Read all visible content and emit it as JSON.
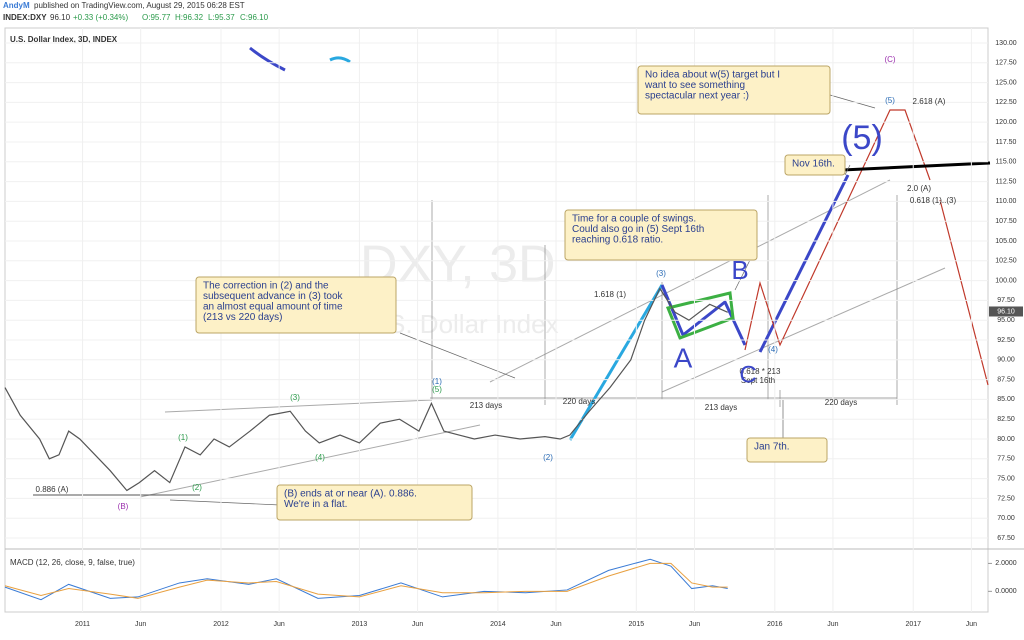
{
  "header": {
    "author": "AndyM",
    "published": "published on TradingView.com, August 29, 2015 06:28 EST",
    "symbol": "INDEX:DXY",
    "price": "96.10",
    "change": "+0.33 (+0.34%)",
    "open": "O:95.77",
    "high": "H:96.32",
    "low": "L:95.37",
    "close": "C:96.10",
    "chart_name": "U.S. Dollar Index, 3D, INDEX",
    "watermark": "DXY, 3D",
    "watermark_sub": "U.S. Dollar Index"
  },
  "chart_data": [
    {
      "type": "line",
      "color": "#555555",
      "grid": true,
      "x": [
        2010.44,
        2010.55,
        2010.69,
        2010.76,
        2010.83,
        2010.9,
        2010.98,
        2011.09,
        2011.2,
        2011.32,
        2011.41,
        2011.52,
        2011.63,
        2011.74,
        2011.85,
        2011.95,
        2012.06,
        2012.21,
        2012.35,
        2012.5,
        2012.61,
        2012.71,
        2012.86,
        2013.0,
        2013.15,
        2013.29,
        2013.43,
        2013.52,
        2013.61,
        2013.72,
        2013.83,
        2013.98,
        2014.16,
        2014.34,
        2014.45,
        2014.52,
        2014.66,
        2014.81,
        2014.96,
        2015.06,
        2015.17,
        2015.28,
        2015.38,
        2015.53,
        2015.66
      ],
      "values": [
        86.5,
        83,
        80,
        77.5,
        78,
        81,
        80,
        78,
        76,
        73.5,
        74.5,
        76,
        74.5,
        79,
        78,
        80,
        79,
        81,
        83,
        83.5,
        81,
        79.5,
        80.5,
        79.5,
        82,
        82.5,
        81,
        84.5,
        81,
        80.5,
        80,
        80.5,
        80,
        80.3,
        80,
        80.5,
        83.5,
        86.5,
        90,
        95,
        99,
        96,
        95,
        97,
        96
      ],
      "last_price": {
        "value": 96.1,
        "label": "96.10"
      },
      "xlim": [
        2010.44,
        2017.54
      ],
      "xticks": [
        {
          "value": 2011,
          "label": "2011"
        },
        {
          "value": 2011.42,
          "label": "Jun"
        },
        {
          "value": 2012,
          "label": "2012"
        },
        {
          "value": 2012.42,
          "label": "Jun"
        },
        {
          "value": 2013,
          "label": "2013"
        },
        {
          "value": 2013.42,
          "label": "Jun"
        },
        {
          "value": 2014,
          "label": "2014"
        },
        {
          "value": 2014.42,
          "label": "Jun"
        },
        {
          "value": 2015,
          "label": "2015"
        },
        {
          "value": 2015.42,
          "label": "Jun"
        },
        {
          "value": 2016,
          "label": "2016"
        },
        {
          "value": 2016.42,
          "label": "Jun"
        },
        {
          "value": 2017,
          "label": "2017"
        },
        {
          "value": 2017.42,
          "label": "Jun"
        }
      ],
      "ylim": [
        66.24,
        131.89
      ],
      "yticks": [
        {
          "value": 67.5,
          "label": "67.50"
        },
        {
          "value": 70,
          "label": "70.00"
        },
        {
          "value": 72.5,
          "label": "72.50"
        },
        {
          "value": 75,
          "label": "75.00"
        },
        {
          "value": 77.5,
          "label": "77.50"
        },
        {
          "value": 80,
          "label": "80.00"
        },
        {
          "value": 82.5,
          "label": "82.50"
        },
        {
          "value": 85,
          "label": "85.00"
        },
        {
          "value": 87.5,
          "label": "87.50"
        },
        {
          "value": 90,
          "label": "90.00"
        },
        {
          "value": 92.5,
          "label": "92.50"
        },
        {
          "value": 95,
          "label": "95.00"
        },
        {
          "value": 97.5,
          "label": "97.50"
        },
        {
          "value": 100,
          "label": "100.00"
        },
        {
          "value": 102.5,
          "label": "102.50"
        },
        {
          "value": 105,
          "label": "105.00"
        },
        {
          "value": 107.5,
          "label": "107.50"
        },
        {
          "value": 110,
          "label": "110.00"
        },
        {
          "value": 112.5,
          "label": "112.50"
        },
        {
          "value": 115,
          "label": "115.00"
        },
        {
          "value": 117.5,
          "label": "117.50"
        },
        {
          "value": 120,
          "label": "120.00"
        },
        {
          "value": 122.5,
          "label": "122.50"
        },
        {
          "value": 125,
          "label": "125.00"
        },
        {
          "value": 127.5,
          "label": "127.50"
        },
        {
          "value": 130,
          "label": "130.00"
        }
      ],
      "annotations": [
        "(1)",
        "(5)",
        "(3)",
        "(1)",
        "(4)",
        "(2)",
        "(B)",
        "(2)",
        "(3)",
        "(4)",
        "(C)",
        "(5)",
        "0.886 (A)",
        "1.618 (1)",
        "2.0 (A)",
        "0.618 (1)..(3)",
        "2.618 (A)",
        "213 days",
        "220 days",
        "213 days",
        "220 days",
        "0.618 * 213",
        "Sept 16th",
        "A",
        "B",
        "C",
        "(5)"
      ],
      "callouts": [
        {
          "lines": [
            "The correction in (2) and the",
            "subsequent advance in (3) took",
            "an almost equal amount of time",
            "(213 vs 220 days)"
          ]
        },
        {
          "lines": [
            "(B) ends at or near (A). 0.886.",
            "We're in a flat."
          ]
        },
        {
          "lines": [
            "Time for a couple of swings.",
            "Could also go in (5) Sept 16th",
            "reaching 0.618 ratio."
          ]
        },
        {
          "lines": [
            "No idea about w(5) target but I",
            "want to see something",
            "spectacular next year :)"
          ]
        },
        {
          "lines": [
            "Nov 16th."
          ]
        },
        {
          "lines": [
            "Jan 7th."
          ]
        }
      ]
    },
    {
      "type": "line",
      "title": "MACD (12, 26, close, 9, false, true)",
      "x": [
        2010.44,
        2010.7,
        2010.9,
        2011.2,
        2011.4,
        2011.7,
        2011.9,
        2012.2,
        2012.4,
        2012.7,
        2013.0,
        2013.3,
        2013.6,
        2013.9,
        2014.2,
        2014.5,
        2014.8,
        2015.1,
        2015.25,
        2015.4,
        2015.55,
        2015.66
      ],
      "series": [
        {
          "color": "#3a7bd5",
          "values": [
            0.3,
            -0.6,
            0.5,
            -0.5,
            -0.4,
            0.6,
            0.9,
            0.5,
            0.9,
            -0.5,
            -0.3,
            0.6,
            -0.4,
            0.0,
            -0.1,
            0.1,
            1.5,
            2.3,
            1.8,
            0.2,
            0.4,
            0.2
          ]
        },
        {
          "color": "#e8a040",
          "values": [
            0.4,
            -0.3,
            0.2,
            -0.2,
            -0.5,
            0.3,
            0.8,
            0.6,
            0.7,
            -0.2,
            -0.4,
            0.4,
            -0.1,
            -0.1,
            0.0,
            0.0,
            1.1,
            2.0,
            2.0,
            0.6,
            0.3,
            0.3
          ]
        }
      ],
      "xlim": [
        2010.44,
        2017.54
      ],
      "ylim": [
        -1.48,
        2.96
      ],
      "yticks": [
        {
          "value": 2,
          "label": "2.0000"
        },
        {
          "value": 0,
          "label": "0.0000"
        }
      ]
    }
  ]
}
